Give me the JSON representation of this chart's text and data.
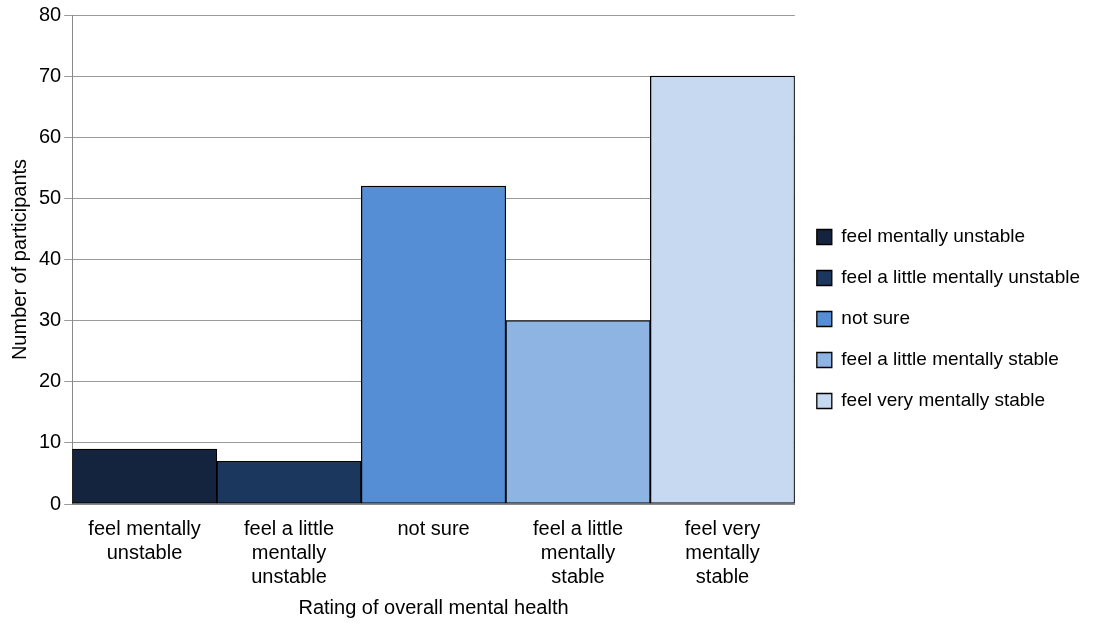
{
  "chart_data": {
    "type": "bar",
    "xlabel": "Rating of overall mental health",
    "ylabel": "Number of participants",
    "categories": [
      "feel mentally unstable",
      "feel a little mentally unstable",
      "not sure",
      "feel a little mentally stable",
      "feel very mentally stable"
    ],
    "series": [
      {
        "name": "feel mentally unstable",
        "color": "#14243f",
        "values": [
          9,
          null,
          null,
          null,
          null
        ]
      },
      {
        "name": "feel a little mentally unstable",
        "color": "#1b375e",
        "values": [
          null,
          7,
          null,
          null,
          null
        ]
      },
      {
        "name": "not sure",
        "color": "#558ed5",
        "values": [
          null,
          null,
          52,
          null,
          null
        ]
      },
      {
        "name": "feel a little mentally stable",
        "color": "#8eb4e3",
        "values": [
          null,
          null,
          null,
          30,
          null
        ]
      },
      {
        "name": "feel very mentally stable",
        "color": "#c6d9f1",
        "values": [
          null,
          null,
          null,
          null,
          70
        ]
      }
    ],
    "stacked": true,
    "ylim": [
      0,
      80
    ],
    "yticks": [
      0,
      10,
      20,
      30,
      40,
      50,
      60,
      70,
      80
    ],
    "grid": "y",
    "legend": "right"
  }
}
